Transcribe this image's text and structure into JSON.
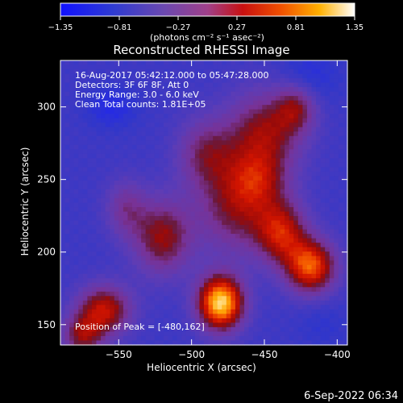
{
  "chart_data": {
    "type": "heatmap",
    "title": "Reconstructed RHESSI Image",
    "xlabel": "Heliocentric X (arcsec)",
    "ylabel": "Heliocentric Y (arcsec)",
    "xlim": [
      -590,
      -393
    ],
    "ylim": [
      136,
      332
    ],
    "xticks": [
      -550,
      -500,
      -450,
      -400
    ],
    "yticks": [
      150,
      200,
      250,
      300
    ],
    "xtick_labels": [
      "−550",
      "−500",
      "−450",
      "−400"
    ],
    "ytick_labels": [
      "150",
      "200",
      "250",
      "300"
    ],
    "colorbar": {
      "min": -1.35,
      "max": 1.35,
      "ticks": [
        -1.35,
        -0.81,
        -0.27,
        0.27,
        0.81,
        1.35
      ],
      "tick_labels": [
        "−1.35",
        "−0.81",
        "−0.27",
        "0.27",
        "0.81",
        "1.35"
      ],
      "units": "(photons cm⁻² s⁻¹ asec⁻²)"
    },
    "annotations": [
      "16-Aug-2017 05:42:12.000 to 05:47:28.000",
      "Detectors: 3F 6F 8F, Att 0",
      "Energy Range: 3.0 - 6.0 keV",
      "Clean    Total counts: 1.81E+05"
    ],
    "peak_label": "Position of Peak = [-480,162]",
    "peak_position": [
      -480,
      162
    ],
    "sources": [
      {
        "x": -480,
        "y": 165,
        "sx": 11,
        "sy": 13,
        "amp": 1.95
      },
      {
        "x": -418,
        "y": 190,
        "sx": 12,
        "sy": 13,
        "amp": 1.45
      },
      {
        "x": -438,
        "y": 213,
        "sx": 12,
        "sy": 15,
        "amp": 1.05
      },
      {
        "x": -468,
        "y": 230,
        "sx": 20,
        "sy": 22,
        "amp": 0.85
      },
      {
        "x": -450,
        "y": 282,
        "sx": 18,
        "sy": 20,
        "amp": 0.95
      },
      {
        "x": -428,
        "y": 300,
        "sx": 10,
        "sy": 12,
        "amp": 0.75
      },
      {
        "x": -490,
        "y": 268,
        "sx": 14,
        "sy": 17,
        "amp": 0.7
      },
      {
        "x": -520,
        "y": 210,
        "sx": 14,
        "sy": 18,
        "amp": 0.95
      },
      {
        "x": -545,
        "y": 230,
        "sx": 10,
        "sy": 14,
        "amp": 0.55
      },
      {
        "x": -560,
        "y": 160,
        "sx": 13,
        "sy": 12,
        "amp": 1.15
      },
      {
        "x": -575,
        "y": 142,
        "sx": 10,
        "sy": 10,
        "amp": 0.85
      },
      {
        "x": -455,
        "y": 250,
        "sx": 14,
        "sy": 14,
        "amp": 0.6
      },
      {
        "x": -555,
        "y": 300,
        "sx": 12,
        "sy": 10,
        "amp": -0.35
      },
      {
        "x": -420,
        "y": 320,
        "sx": 14,
        "sy": 14,
        "amp": -0.3
      },
      {
        "x": -410,
        "y": 150,
        "sx": 12,
        "sy": 12,
        "amp": -0.15
      }
    ],
    "base_level": -0.75,
    "grid": false
  },
  "footer": {
    "date": "6-Sep-2022 06:34"
  }
}
